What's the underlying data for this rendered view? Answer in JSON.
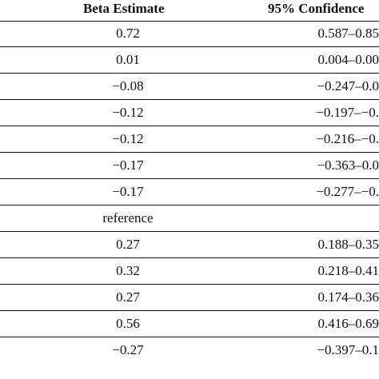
{
  "table": {
    "headers": {
      "beta": "Beta Estimate",
      "ci": "95% Confidence"
    },
    "rows": [
      {
        "beta": "0.72",
        "ci": "0.587–0.85"
      },
      {
        "beta": "0.01",
        "ci": "0.004–0.00"
      },
      {
        "beta": "−0.08",
        "ci": "−0.247–0.0"
      },
      {
        "beta": "−0.12",
        "ci": "−0.197–−0."
      },
      {
        "beta": "−0.12",
        "ci": "−0.216–−0."
      },
      {
        "beta": "−0.17",
        "ci": "−0.363–0.0"
      },
      {
        "beta": "−0.17",
        "ci": "−0.277–−0."
      },
      {
        "beta": "reference",
        "ci": ""
      },
      {
        "beta": "0.27",
        "ci": "0.188–0.35"
      },
      {
        "beta": "0.32",
        "ci": "0.218–0.41"
      },
      {
        "beta": "0.27",
        "ci": "0.174–0.36"
      },
      {
        "beta": "0.56",
        "ci": "0.416–0.69"
      },
      {
        "beta": "−0.27",
        "ci": "−0.397–0.1"
      }
    ]
  }
}
